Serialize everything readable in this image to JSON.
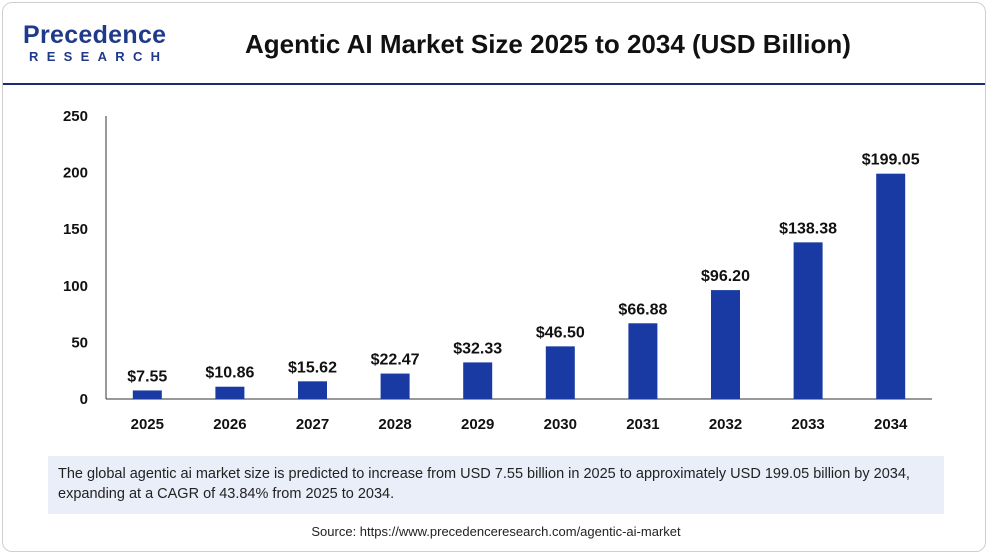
{
  "header": {
    "logo_text": "Precedence",
    "logo_subtext": "RESEARCH",
    "title": "Agentic AI Market Size 2025 to 2034 (USD Billion)"
  },
  "chart_data": {
    "type": "bar",
    "categories": [
      "2025",
      "2026",
      "2027",
      "2028",
      "2029",
      "2030",
      "2031",
      "2032",
      "2033",
      "2034"
    ],
    "values": [
      7.55,
      10.86,
      15.62,
      22.47,
      32.33,
      46.5,
      66.88,
      96.2,
      138.38,
      199.05
    ],
    "value_labels": [
      "$7.55",
      "$10.86",
      "$15.62",
      "$22.47",
      "$32.33",
      "$46.50",
      "$66.88",
      "$96.20",
      "$138.38",
      "$199.05"
    ],
    "title": "Agentic AI Market Size 2025 to 2034 (USD Billion)",
    "xlabel": "",
    "ylabel": "",
    "ylim": [
      0,
      250
    ],
    "yticks": [
      0,
      50,
      100,
      150,
      200,
      250
    ],
    "grid": false,
    "bar_color": "#1a3aa3"
  },
  "note": {
    "text": "The global agentic ai market size is predicted to increase from USD 7.55 billion in 2025 to approximately USD 199.05 billion by 2034, expanding at a CAGR of 43.84% from 2025 to 2034."
  },
  "source": {
    "text": "Source: https://www.precedenceresearch.com/agentic-ai-market"
  }
}
